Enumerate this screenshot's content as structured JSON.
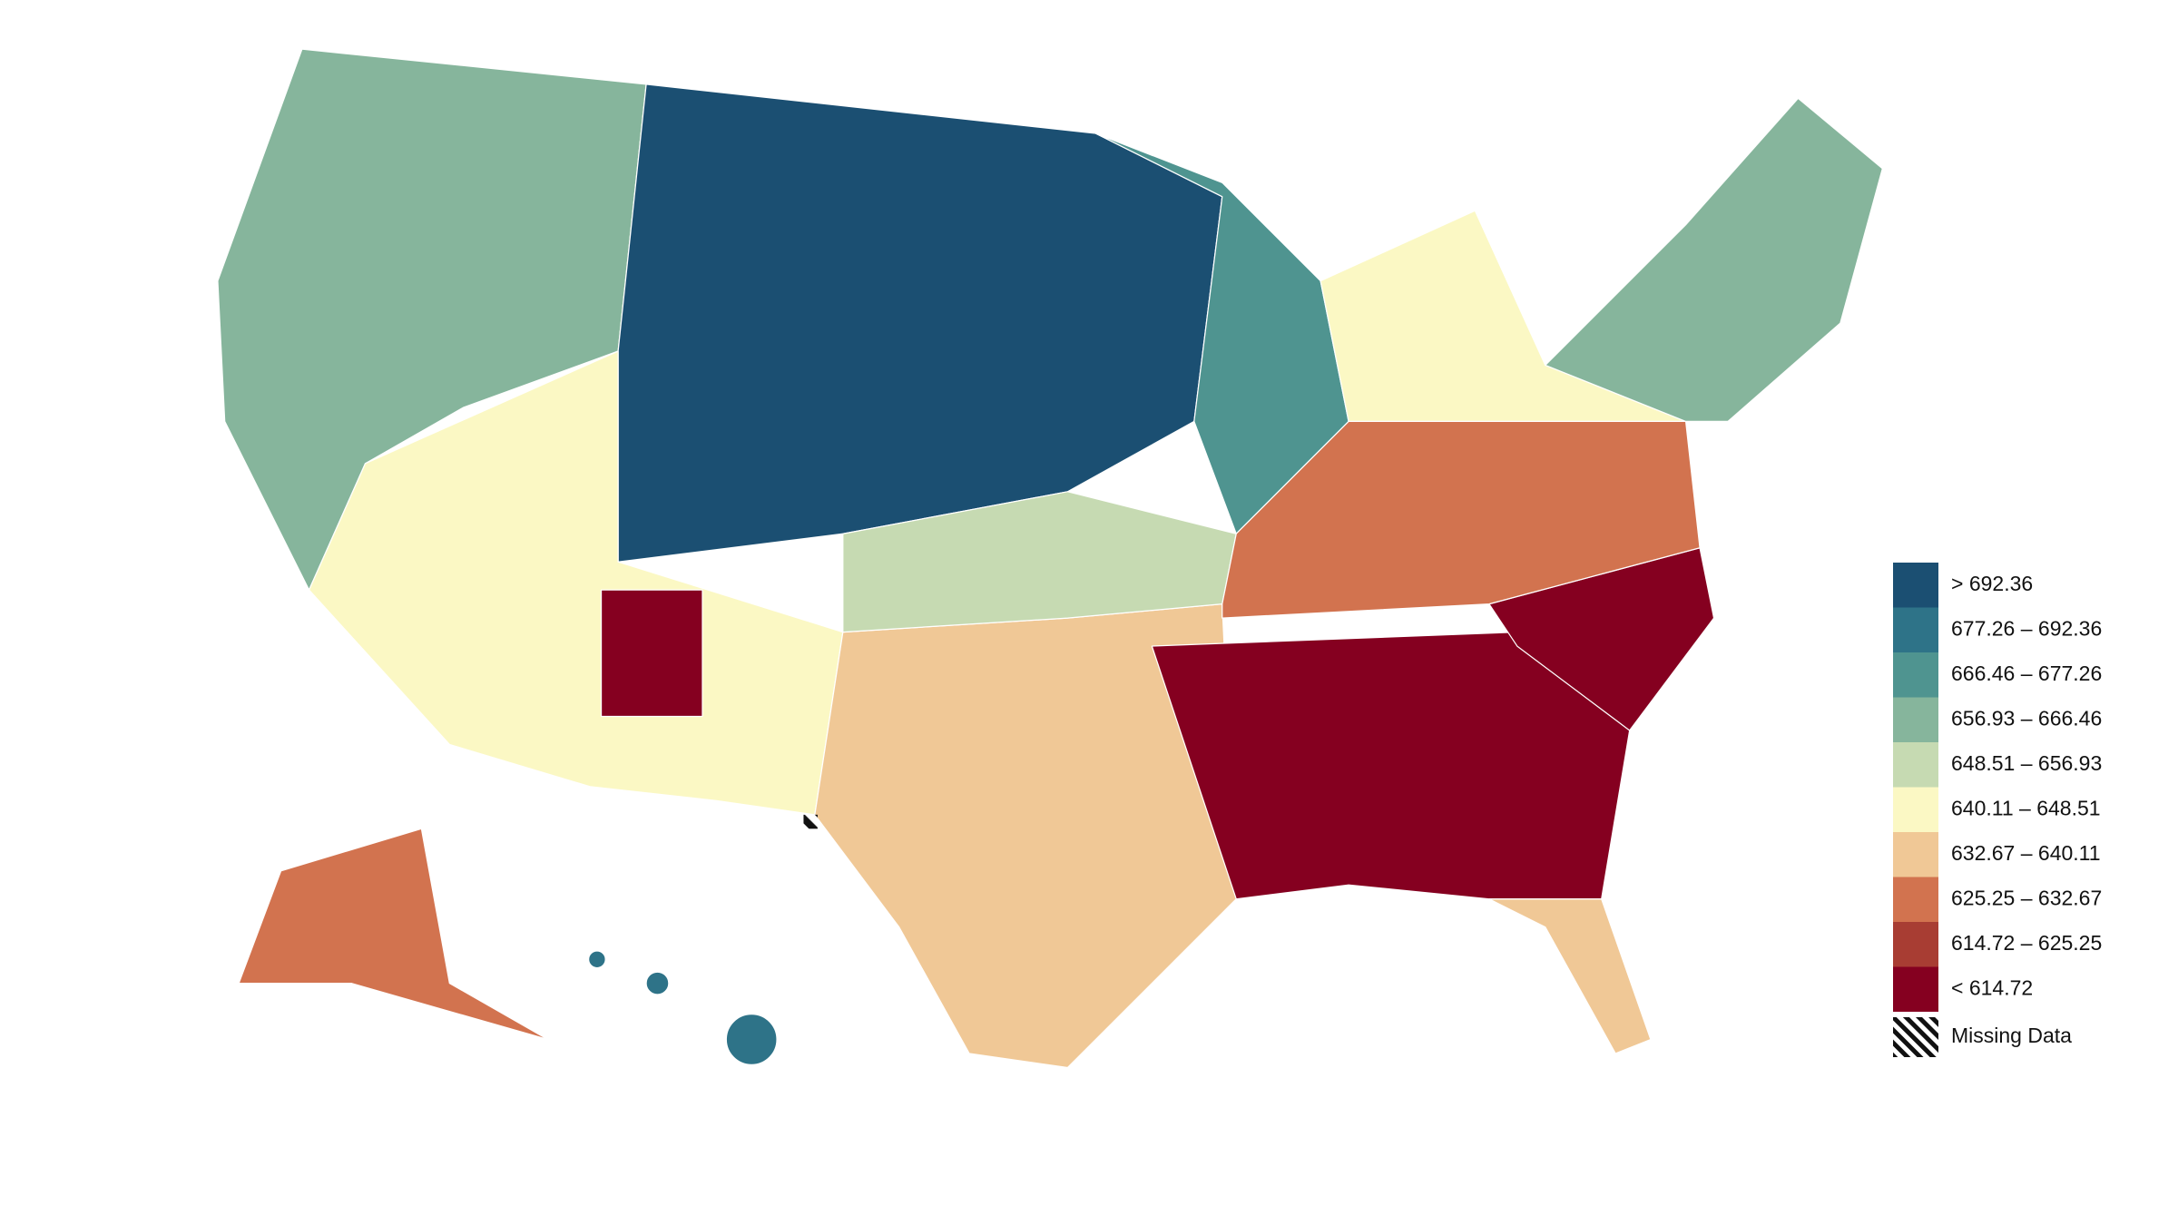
{
  "legend": {
    "items": [
      {
        "label": "> 692.36",
        "color": "#1b4f72"
      },
      {
        "label": "677.26 – 692.36",
        "color": "#2e7388"
      },
      {
        "label": "666.46 – 677.26",
        "color": "#4f9490"
      },
      {
        "label": "656.93 – 666.46",
        "color": "#86b59c"
      },
      {
        "label": "648.51 – 656.93",
        "color": "#c6dab2"
      },
      {
        "label": "640.11 – 648.51",
        "color": "#fbf8c4"
      },
      {
        "label": "632.67 – 640.11",
        "color": "#f0c896"
      },
      {
        "label": "625.25 – 632.67",
        "color": "#d2734f"
      },
      {
        "label": "614.72 – 625.25",
        "color": "#a83d33"
      },
      {
        "label": "< 614.72",
        "color": "#850020"
      }
    ],
    "missing": {
      "label": "Missing Data"
    }
  }
}
